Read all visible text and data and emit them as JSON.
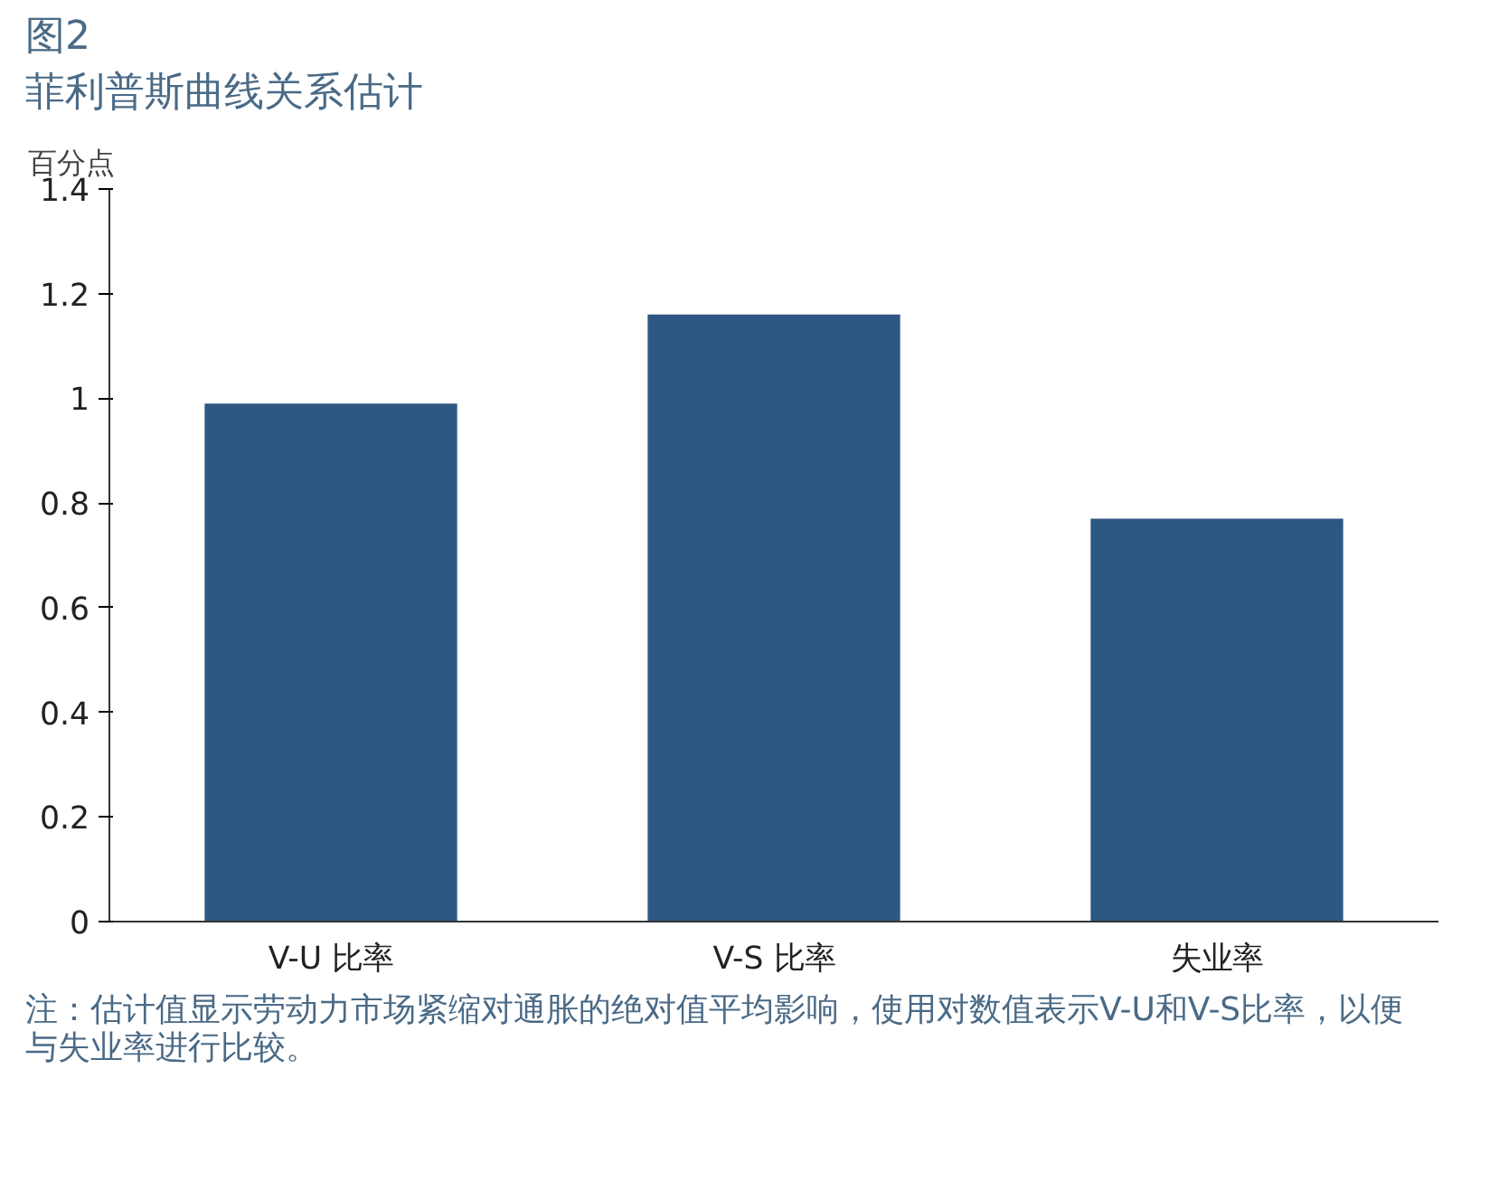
{
  "chart_data": {
    "type": "bar",
    "title": "图2",
    "subtitle": "菲利普斯曲线关系估计",
    "ylabel": "百分点",
    "categories": [
      "V-U 比率",
      "V-S 比率",
      "失业率"
    ],
    "values": [
      0.99,
      1.16,
      0.77
    ],
    "color": "#2e5883",
    "ylim": [
      0,
      1.4
    ],
    "yticks": [
      0,
      0.2,
      0.4,
      0.6,
      0.8,
      1,
      1.2,
      1.4
    ],
    "grid": false,
    "annotations": [
      "注：估计值显示劳动力市场紧缩对通胀的绝对值平均影响，使用对数值表示V-U和V-S比率，以便与失业率进行比较。"
    ]
  }
}
